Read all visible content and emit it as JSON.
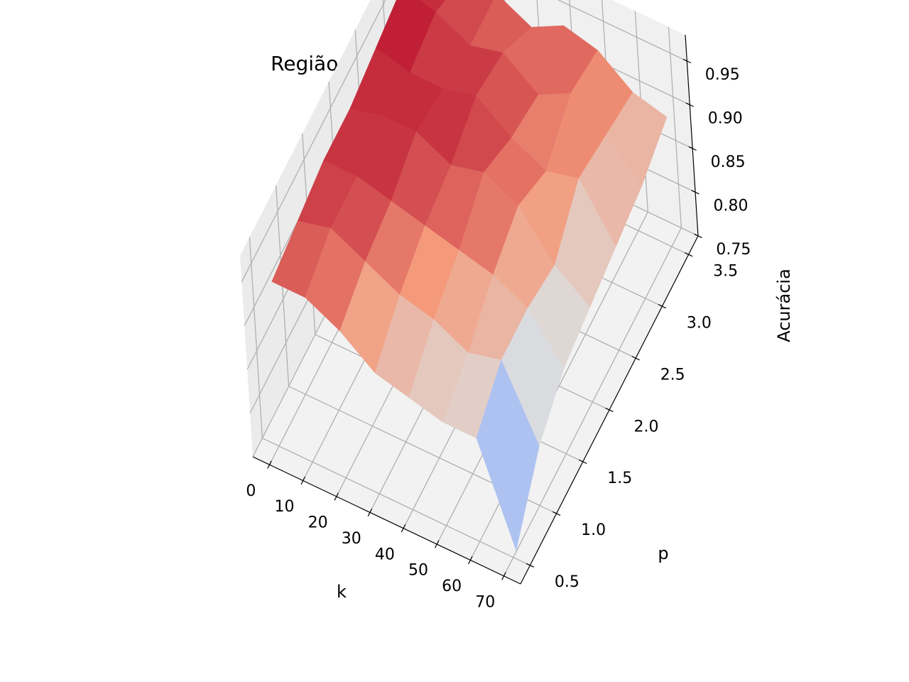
{
  "chart_data": {
    "type": "surface",
    "title": "Região de acurácia - dados:Iris Dataset",
    "xlabel": "k",
    "ylabel": "p",
    "zlabel": "Acurácia",
    "x_ticks": [
      "0",
      "10",
      "20",
      "30",
      "40",
      "50",
      "60",
      "70"
    ],
    "y_ticks": [
      "0.5",
      "1.0",
      "1.5",
      "2.0",
      "2.5",
      "3.0",
      "3.5"
    ],
    "z_ticks": [
      "0.75",
      "0.80",
      "0.85",
      "0.90",
      "0.95"
    ],
    "xlim": [
      -5,
      75
    ],
    "ylim": [
      0.32,
      3.68
    ],
    "zlim": [
      0.75,
      0.98
    ],
    "grid": true,
    "colormap": "coolwarm",
    "k": [
      1,
      11,
      21,
      31,
      41,
      51,
      61,
      71
    ],
    "p": [
      0.5,
      1.0,
      1.5,
      2.0,
      2.5,
      3.0,
      3.5
    ],
    "accuracy": [
      [
        0.94,
        0.95,
        0.96,
        0.96,
        0.97,
        0.98,
        0.96
      ],
      [
        0.94,
        0.96,
        0.96,
        0.97,
        0.96,
        0.97,
        0.95
      ],
      [
        0.92,
        0.94,
        0.95,
        0.97,
        0.96,
        0.95,
        0.95
      ],
      [
        0.89,
        0.92,
        0.94,
        0.95,
        0.97,
        0.96,
        0.93
      ],
      [
        0.88,
        0.91,
        0.93,
        0.96,
        0.94,
        0.93,
        0.95
      ],
      [
        0.87,
        0.89,
        0.92,
        0.94,
        0.92,
        0.95,
        0.94
      ],
      [
        0.87,
        0.9,
        0.9,
        0.89,
        0.93,
        0.92,
        0.91
      ],
      [
        0.76,
        0.82,
        0.85,
        0.86,
        0.87,
        0.88,
        0.9
      ]
    ]
  }
}
